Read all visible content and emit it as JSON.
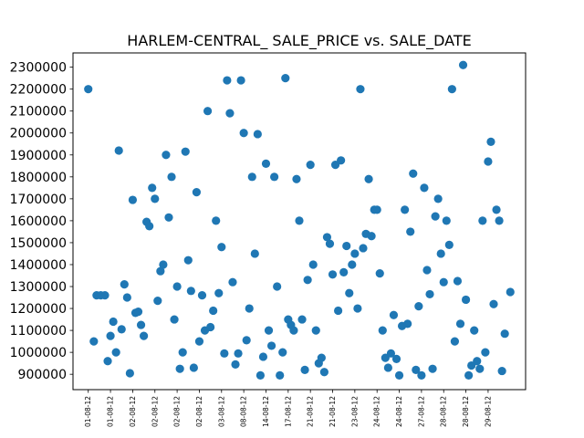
{
  "chart_data": {
    "type": "scatter",
    "title": "HARLEM-CENTRAL_ SALE_PRICE vs. SALE_DATE",
    "xlabel": "",
    "ylabel": "",
    "ylim": [
      830000,
      2365000
    ],
    "y_ticks": [
      900000,
      1000000,
      1100000,
      1200000,
      1300000,
      1400000,
      1500000,
      1600000,
      1700000,
      1800000,
      1900000,
      2000000,
      2100000,
      2200000,
      2300000
    ],
    "x_tick_labels": [
      "01-08-12",
      "01-08-12",
      "02-08-12",
      "02-08-12",
      "02-08-12",
      "02-08-12",
      "03-08-12",
      "08-08-12",
      "14-08-12",
      "17-08-12",
      "21-08-12",
      "21-08-12",
      "23-08-12",
      "24-08-12",
      "24-08-12",
      "27-08-12",
      "28-08-12",
      "28-08-12",
      "29-08-12"
    ],
    "marker_color": "#1f77b4",
    "grid": false,
    "legend": "none",
    "points": [
      {
        "x": 0.0,
        "y": 2200000
      },
      {
        "x": 0.2,
        "y": 1050000
      },
      {
        "x": 0.3,
        "y": 1260000
      },
      {
        "x": 0.45,
        "y": 1260000
      },
      {
        "x": 0.6,
        "y": 1260000
      },
      {
        "x": 0.7,
        "y": 960000
      },
      {
        "x": 0.8,
        "y": 1075000
      },
      {
        "x": 0.9,
        "y": 1140000
      },
      {
        "x": 1.0,
        "y": 1000000
      },
      {
        "x": 1.1,
        "y": 1920000
      },
      {
        "x": 1.2,
        "y": 1105000
      },
      {
        "x": 1.3,
        "y": 1310000
      },
      {
        "x": 1.4,
        "y": 1250000
      },
      {
        "x": 1.5,
        "y": 905000
      },
      {
        "x": 1.6,
        "y": 1695000
      },
      {
        "x": 1.7,
        "y": 1180000
      },
      {
        "x": 1.8,
        "y": 1185000
      },
      {
        "x": 1.9,
        "y": 1125000
      },
      {
        "x": 2.0,
        "y": 1075000
      },
      {
        "x": 2.1,
        "y": 1595000
      },
      {
        "x": 2.2,
        "y": 1575000
      },
      {
        "x": 2.3,
        "y": 1750000
      },
      {
        "x": 2.4,
        "y": 1700000
      },
      {
        "x": 2.5,
        "y": 1235000
      },
      {
        "x": 2.6,
        "y": 1370000
      },
      {
        "x": 2.7,
        "y": 1400000
      },
      {
        "x": 2.8,
        "y": 1900000
      },
      {
        "x": 2.9,
        "y": 1615000
      },
      {
        "x": 3.0,
        "y": 1800000
      },
      {
        "x": 3.1,
        "y": 1150000
      },
      {
        "x": 3.2,
        "y": 1300000
      },
      {
        "x": 3.3,
        "y": 925000
      },
      {
        "x": 3.4,
        "y": 1000000
      },
      {
        "x": 3.5,
        "y": 1915000
      },
      {
        "x": 3.6,
        "y": 1420000
      },
      {
        "x": 3.7,
        "y": 1280000
      },
      {
        "x": 3.8,
        "y": 930000
      },
      {
        "x": 3.9,
        "y": 1730000
      },
      {
        "x": 4.0,
        "y": 1050000
      },
      {
        "x": 4.1,
        "y": 1260000
      },
      {
        "x": 4.2,
        "y": 1100000
      },
      {
        "x": 4.3,
        "y": 2100000
      },
      {
        "x": 4.4,
        "y": 1115000
      },
      {
        "x": 4.5,
        "y": 1190000
      },
      {
        "x": 4.6,
        "y": 1600000
      },
      {
        "x": 4.7,
        "y": 1270000
      },
      {
        "x": 4.8,
        "y": 1480000
      },
      {
        "x": 4.9,
        "y": 995000
      },
      {
        "x": 5.0,
        "y": 2240000
      },
      {
        "x": 5.1,
        "y": 2090000
      },
      {
        "x": 5.2,
        "y": 1320000
      },
      {
        "x": 5.3,
        "y": 945000
      },
      {
        "x": 5.4,
        "y": 995000
      },
      {
        "x": 5.5,
        "y": 2240000
      },
      {
        "x": 5.6,
        "y": 2000000
      },
      {
        "x": 5.7,
        "y": 1055000
      },
      {
        "x": 5.8,
        "y": 1200000
      },
      {
        "x": 5.9,
        "y": 1800000
      },
      {
        "x": 6.0,
        "y": 1450000
      },
      {
        "x": 6.1,
        "y": 1995000
      },
      {
        "x": 6.2,
        "y": 895000
      },
      {
        "x": 6.3,
        "y": 980000
      },
      {
        "x": 6.4,
        "y": 1860000
      },
      {
        "x": 6.5,
        "y": 1100000
      },
      {
        "x": 6.6,
        "y": 1030000
      },
      {
        "x": 6.7,
        "y": 1800000
      },
      {
        "x": 6.8,
        "y": 1300000
      },
      {
        "x": 6.9,
        "y": 895000
      },
      {
        "x": 7.0,
        "y": 1000000
      },
      {
        "x": 7.1,
        "y": 2250000
      },
      {
        "x": 7.2,
        "y": 1150000
      },
      {
        "x": 7.3,
        "y": 1125000
      },
      {
        "x": 7.4,
        "y": 1100000
      },
      {
        "x": 7.5,
        "y": 1790000
      },
      {
        "x": 7.6,
        "y": 1600000
      },
      {
        "x": 7.7,
        "y": 1150000
      },
      {
        "x": 7.8,
        "y": 920000
      },
      {
        "x": 7.9,
        "y": 1330000
      },
      {
        "x": 8.0,
        "y": 1855000
      },
      {
        "x": 8.1,
        "y": 1400000
      },
      {
        "x": 8.2,
        "y": 1100000
      },
      {
        "x": 8.3,
        "y": 950000
      },
      {
        "x": 8.4,
        "y": 975000
      },
      {
        "x": 8.5,
        "y": 910000
      },
      {
        "x": 8.6,
        "y": 1525000
      },
      {
        "x": 8.7,
        "y": 1495000
      },
      {
        "x": 8.8,
        "y": 1355000
      },
      {
        "x": 8.9,
        "y": 1855000
      },
      {
        "x": 9.0,
        "y": 1190000
      },
      {
        "x": 9.1,
        "y": 1875000
      },
      {
        "x": 9.2,
        "y": 1365000
      },
      {
        "x": 9.3,
        "y": 1485000
      },
      {
        "x": 9.4,
        "y": 1270000
      },
      {
        "x": 9.5,
        "y": 1400000
      },
      {
        "x": 9.6,
        "y": 1450000
      },
      {
        "x": 9.7,
        "y": 1200000
      },
      {
        "x": 9.8,
        "y": 2200000
      },
      {
        "x": 9.9,
        "y": 1475000
      },
      {
        "x": 10.0,
        "y": 1540000
      },
      {
        "x": 10.1,
        "y": 1790000
      },
      {
        "x": 10.2,
        "y": 1530000
      },
      {
        "x": 10.3,
        "y": 1650000
      },
      {
        "x": 10.4,
        "y": 1650000
      },
      {
        "x": 10.5,
        "y": 1360000
      },
      {
        "x": 10.6,
        "y": 1100000
      },
      {
        "x": 10.7,
        "y": 975000
      },
      {
        "x": 10.8,
        "y": 930000
      },
      {
        "x": 10.9,
        "y": 995000
      },
      {
        "x": 11.0,
        "y": 1170000
      },
      {
        "x": 11.1,
        "y": 970000
      },
      {
        "x": 11.2,
        "y": 895000
      },
      {
        "x": 11.3,
        "y": 1120000
      },
      {
        "x": 11.4,
        "y": 1650000
      },
      {
        "x": 11.5,
        "y": 1130000
      },
      {
        "x": 11.6,
        "y": 1550000
      },
      {
        "x": 11.7,
        "y": 1815000
      },
      {
        "x": 11.8,
        "y": 920000
      },
      {
        "x": 11.9,
        "y": 1210000
      },
      {
        "x": 12.0,
        "y": 895000
      },
      {
        "x": 12.1,
        "y": 1750000
      },
      {
        "x": 12.2,
        "y": 1375000
      },
      {
        "x": 12.3,
        "y": 1265000
      },
      {
        "x": 12.4,
        "y": 925000
      },
      {
        "x": 12.5,
        "y": 1620000
      },
      {
        "x": 12.6,
        "y": 1700000
      },
      {
        "x": 12.7,
        "y": 1450000
      },
      {
        "x": 12.8,
        "y": 1320000
      },
      {
        "x": 12.9,
        "y": 1600000
      },
      {
        "x": 13.0,
        "y": 1490000
      },
      {
        "x": 13.1,
        "y": 2200000
      },
      {
        "x": 13.2,
        "y": 1050000
      },
      {
        "x": 13.3,
        "y": 1325000
      },
      {
        "x": 13.4,
        "y": 1130000
      },
      {
        "x": 13.5,
        "y": 2310000
      },
      {
        "x": 13.6,
        "y": 1240000
      },
      {
        "x": 13.7,
        "y": 895000
      },
      {
        "x": 13.8,
        "y": 940000
      },
      {
        "x": 13.9,
        "y": 1100000
      },
      {
        "x": 14.0,
        "y": 960000
      },
      {
        "x": 14.1,
        "y": 925000
      },
      {
        "x": 14.2,
        "y": 1600000
      },
      {
        "x": 14.3,
        "y": 1000000
      },
      {
        "x": 14.4,
        "y": 1870000
      },
      {
        "x": 14.5,
        "y": 1960000
      },
      {
        "x": 14.6,
        "y": 1220000
      },
      {
        "x": 14.7,
        "y": 1650000
      },
      {
        "x": 14.8,
        "y": 1600000
      },
      {
        "x": 14.9,
        "y": 915000
      },
      {
        "x": 15.0,
        "y": 1085000
      },
      {
        "x": 15.2,
        "y": 1275000
      }
    ]
  }
}
